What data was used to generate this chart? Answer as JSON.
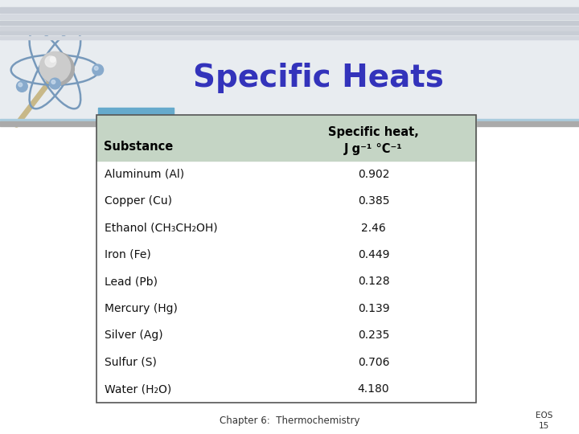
{
  "title": "Specific Heats",
  "title_color": "#3333BB",
  "title_fontsize": 28,
  "background_color": "#FFFFFF",
  "header_bg_color": "#C5D5C5",
  "header_col1": "Substance",
  "header_col2_line1": "Specific heat,",
  "header_col2_line2": "J g⁻¹ °C⁻¹",
  "substances": [
    "Aluminum (Al)",
    "Copper (Cu)",
    "Ethanol (CH₃CH₂OH)",
    "Iron (Fe)",
    "Lead (Pb)",
    "Mercury (Hg)",
    "Silver (Ag)",
    "Sulfur (S)",
    "Water (H₂O)"
  ],
  "values": [
    "0.902",
    "0.385",
    "2.46",
    "0.449",
    "0.128",
    "0.139",
    "0.235",
    "0.706",
    "4.180"
  ],
  "footer_left": "Chapter 6:  Thermochemistry",
  "footer_right_line1": "EOS",
  "footer_right_line2": "15",
  "slide_bg_color": "#E8ECF0",
  "stripe_light": "#EAEEF2",
  "stripe_dark": "#D8DCE4",
  "blue_bar_color": "#66AACC",
  "divider_color": "#444444",
  "teal_bar_color": "#88BBCC"
}
